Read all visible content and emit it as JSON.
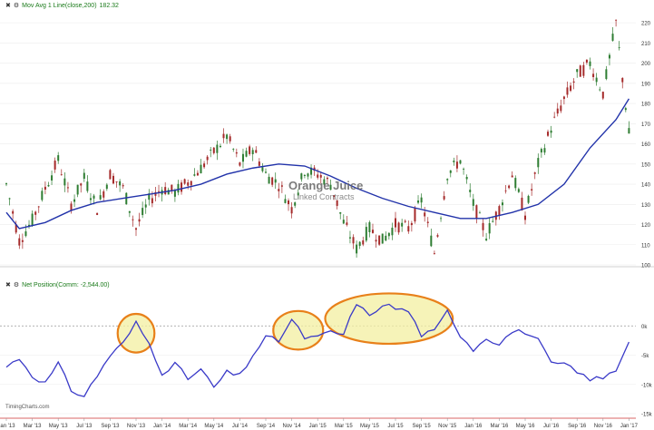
{
  "top_legend": {
    "close_icon": "x-icon",
    "settings_icon": "gear-icon",
    "label": "Mov Avg 1 Line(close,200)",
    "value": "182.32"
  },
  "bottom_legend": {
    "close_icon": "x-icon",
    "settings_icon": "gear-icon",
    "label": "Net Position(Comm: -2,544.00)"
  },
  "watermark": {
    "title": "Orange Juice",
    "subtitle": "Linked Contracts"
  },
  "credit": "TimingCharts.com",
  "colors": {
    "up": "#2e7d32",
    "down": "#a52a2a",
    "ma": "#2233aa",
    "net": "#3a3ac8",
    "highlight_fill": "#f3efa0",
    "highlight_stroke": "#e8801a",
    "zero_line": "#999999"
  },
  "chart_data": [
    {
      "type": "candlestick",
      "title": "Orange Juice Linked Contracts",
      "ylim": [
        100,
        225
      ],
      "y_ticks": [
        "220",
        "210",
        "200",
        "190",
        "180",
        "170",
        "160",
        "150",
        "140",
        "130",
        "120",
        "110",
        "100"
      ],
      "x_ticks": [
        "Jan '13",
        "Mar '13",
        "May '13",
        "Jul '13",
        "Sep '13",
        "Nov '13",
        "Jan '14",
        "Mar '14",
        "May '14",
        "Jul '14",
        "Sep '14",
        "Nov '14",
        "Jan '15",
        "Mar '15",
        "May '15",
        "Jul '15",
        "Sep '15",
        "Nov '15",
        "Jan '16",
        "Mar '16",
        "May '16",
        "Jul '16",
        "Sep '16",
        "Nov '16",
        "Jan '17"
      ],
      "close_path": [
        [
          "Jan '13",
          140
        ],
        [
          "Feb '13",
          112
        ],
        [
          "Mar '13",
          122
        ],
        [
          "Apr '13",
          138
        ],
        [
          "May '13",
          152
        ],
        [
          "Jun '13",
          130
        ],
        [
          "Jul '13",
          143
        ],
        [
          "Aug '13",
          128
        ],
        [
          "Sep '13",
          145
        ],
        [
          "Oct '13",
          138
        ],
        [
          "Nov '13",
          118
        ],
        [
          "Dec '13",
          132
        ],
        [
          "Jan '14",
          138
        ],
        [
          "Feb '14",
          136
        ],
        [
          "Mar '14",
          141
        ],
        [
          "Apr '14",
          148
        ],
        [
          "May '14",
          156
        ],
        [
          "Jun '14",
          164
        ],
        [
          "Jul '14",
          150
        ],
        [
          "Aug '14",
          158
        ],
        [
          "Sep '14",
          145
        ],
        [
          "Oct '14",
          140
        ],
        [
          "Nov '14",
          128
        ],
        [
          "Dec '14",
          147
        ],
        [
          "Jan '15",
          145
        ],
        [
          "Feb '15",
          140
        ],
        [
          "Mar '15",
          121
        ],
        [
          "Apr '15",
          108
        ],
        [
          "May '15",
          118
        ],
        [
          "Jun '15",
          112
        ],
        [
          "Jul '15",
          120
        ],
        [
          "Aug '15",
          118
        ],
        [
          "Sep '15",
          132
        ],
        [
          "Oct '15",
          106
        ],
        [
          "Nov '15",
          145
        ],
        [
          "Dec '15",
          152
        ],
        [
          "Jan '16",
          130
        ],
        [
          "Feb '16",
          115
        ],
        [
          "Mar '16",
          128
        ],
        [
          "Apr '16",
          145
        ],
        [
          "May '16",
          125
        ],
        [
          "Jun '16",
          150
        ],
        [
          "Jul '16",
          168
        ],
        [
          "Aug '16",
          182
        ],
        [
          "Sep '16",
          194
        ],
        [
          "Oct '16",
          200
        ],
        [
          "Nov '16",
          185
        ],
        [
          "Dec '16",
          220
        ],
        [
          "Jan '17",
          165
        ]
      ],
      "moving_average_200": [
        [
          "Jan '13",
          126
        ],
        [
          "Feb '13",
          118
        ],
        [
          "Apr '13",
          121
        ],
        [
          "Jun '13",
          127
        ],
        [
          "Aug '13",
          131
        ],
        [
          "Oct '13",
          133
        ],
        [
          "Dec '13",
          135
        ],
        [
          "Feb '14",
          137
        ],
        [
          "Apr '14",
          140
        ],
        [
          "Jun '14",
          145
        ],
        [
          "Aug '14",
          148
        ],
        [
          "Oct '14",
          150
        ],
        [
          "Dec '14",
          149
        ],
        [
          "Feb '15",
          144
        ],
        [
          "Apr '15",
          138
        ],
        [
          "Jun '15",
          133
        ],
        [
          "Aug '15",
          129
        ],
        [
          "Oct '15",
          126
        ],
        [
          "Dec '15",
          123
        ],
        [
          "Feb '16",
          123
        ],
        [
          "Apr '16",
          126
        ],
        [
          "Jun '16",
          130
        ],
        [
          "Aug '16",
          140
        ],
        [
          "Oct '16",
          158
        ],
        [
          "Dec '16",
          172
        ],
        [
          "Jan '17",
          182.32
        ]
      ],
      "ma_last_value": 182.32
    },
    {
      "type": "line",
      "title": "Net Position(Comm: -2,544.00)",
      "ylim": [
        -15000,
        5000
      ],
      "y_ticks": [
        "0k",
        "-5k",
        "-10k",
        "-15k"
      ],
      "values": [
        [
          "Jan '13",
          -7000
        ],
        [
          "Feb '13",
          -5500
        ],
        [
          "Mar '13",
          -8500
        ],
        [
          "Apr '13",
          -9800
        ],
        [
          "May '13",
          -6500
        ],
        [
          "Jun '13",
          -11000
        ],
        [
          "Jul '13",
          -12000
        ],
        [
          "Aug '13",
          -8500
        ],
        [
          "Sep '13",
          -5000
        ],
        [
          "Oct '13",
          -3000
        ],
        [
          "Nov '13",
          500
        ],
        [
          "Dec '13",
          -3000
        ],
        [
          "Jan '14",
          -8000
        ],
        [
          "Feb '14",
          -6500
        ],
        [
          "Mar '14",
          -9000
        ],
        [
          "Apr '14",
          -7500
        ],
        [
          "May '14",
          -10500
        ],
        [
          "Jun '14",
          -8000
        ],
        [
          "Jul '14",
          -8500
        ],
        [
          "Aug '14",
          -5000
        ],
        [
          "Sep '14",
          -2000
        ],
        [
          "Oct '14",
          -2500
        ],
        [
          "Nov '14",
          1000
        ],
        [
          "Dec '14",
          -2000
        ],
        [
          "Jan '15",
          -2000
        ],
        [
          "Feb '15",
          -1000
        ],
        [
          "Mar '15",
          -1500
        ],
        [
          "Apr '15",
          4000
        ],
        [
          "May '15",
          1500
        ],
        [
          "Jun '15",
          3800
        ],
        [
          "Jul '15",
          3000
        ],
        [
          "Aug '15",
          2500
        ],
        [
          "Sep '15",
          -1500
        ],
        [
          "Oct '15",
          -1000
        ],
        [
          "Nov '15",
          2500
        ],
        [
          "Dec '15",
          -1500
        ],
        [
          "Jan '16",
          -4000
        ],
        [
          "Feb '16",
          -2000
        ],
        [
          "Mar '16",
          -3000
        ],
        [
          "Apr '16",
          -1000
        ],
        [
          "May '16",
          -1000
        ],
        [
          "Jun '16",
          -2500
        ],
        [
          "Jul '16",
          -6500
        ],
        [
          "Aug '16",
          -6500
        ],
        [
          "Sep '16",
          -8000
        ],
        [
          "Oct '16",
          -9000
        ],
        [
          "Nov '16",
          -9000
        ],
        [
          "Dec '16",
          -7500
        ],
        [
          "Jan '17",
          -2544
        ]
      ],
      "highlights": [
        {
          "from": "Oct '13",
          "to": "Dec '13"
        },
        {
          "from": "Oct '14",
          "to": "Jan '15"
        },
        {
          "from": "Feb '15",
          "to": "Nov '15"
        }
      ]
    }
  ]
}
